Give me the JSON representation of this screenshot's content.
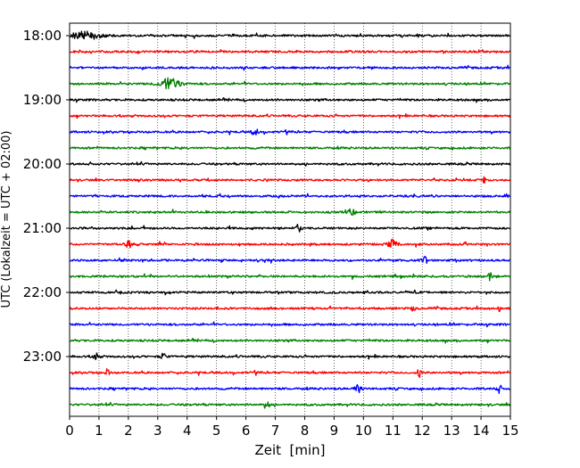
{
  "chart_data": {
    "type": "line",
    "xlabel": "Zeit  [min]",
    "ylabel": "UTC (Lokalzeit = UTC + 02:00)",
    "xlim": [
      0,
      15
    ],
    "x_ticks": [
      "0",
      "1",
      "2",
      "3",
      "4",
      "5",
      "6",
      "7",
      "8",
      "9",
      "10",
      "11",
      "12",
      "13",
      "14",
      "15"
    ],
    "y_tick_labels": [
      "18:00",
      "19:00",
      "20:00",
      "21:00",
      "22:00",
      "23:00"
    ],
    "grid": "vertical dotted at each minute",
    "trace_start": "18:00",
    "trace_interval_minutes": 15,
    "trace_count": 24,
    "trace_colors": [
      "#000000",
      "#ff0000",
      "#0000ff",
      "#008000"
    ],
    "events": [
      {
        "trace": 3,
        "x": 3.4,
        "amp": 1.6,
        "width": 0.35
      },
      {
        "trace": 0,
        "x": 0.5,
        "amp": 1.0,
        "width": 0.6
      },
      {
        "trace": 13,
        "x": 11.0,
        "amp": 1.3,
        "width": 0.15
      },
      {
        "trace": 13,
        "x": 2.0,
        "amp": 1.0,
        "width": 0.1
      },
      {
        "trace": 12,
        "x": 7.8,
        "amp": 1.4,
        "width": 0.08
      },
      {
        "trace": 20,
        "x": 0.9,
        "amp": 1.2,
        "width": 0.08
      },
      {
        "trace": 20,
        "x": 3.2,
        "amp": 1.1,
        "width": 0.08
      },
      {
        "trace": 21,
        "x": 11.9,
        "amp": 1.5,
        "width": 0.06
      },
      {
        "trace": 21,
        "x": 1.3,
        "amp": 1.2,
        "width": 0.06
      },
      {
        "trace": 22,
        "x": 9.8,
        "amp": 1.1,
        "width": 0.12
      },
      {
        "trace": 22,
        "x": 14.6,
        "amp": 1.1,
        "width": 0.08
      },
      {
        "trace": 14,
        "x": 12.1,
        "amp": 1.0,
        "width": 0.1
      },
      {
        "trace": 15,
        "x": 14.3,
        "amp": 1.2,
        "width": 0.06
      },
      {
        "trace": 11,
        "x": 9.6,
        "amp": 1.0,
        "width": 0.1
      },
      {
        "trace": 6,
        "x": 6.3,
        "amp": 1.0,
        "width": 0.1
      },
      {
        "trace": 17,
        "x": 14.6,
        "amp": 1.2,
        "width": 0.06
      },
      {
        "trace": 17,
        "x": 11.7,
        "amp": 0.9,
        "width": 0.06
      },
      {
        "trace": 9,
        "x": 14.1,
        "amp": 1.0,
        "width": 0.06
      },
      {
        "trace": 23,
        "x": 6.7,
        "amp": 1.0,
        "width": 0.1
      }
    ]
  }
}
